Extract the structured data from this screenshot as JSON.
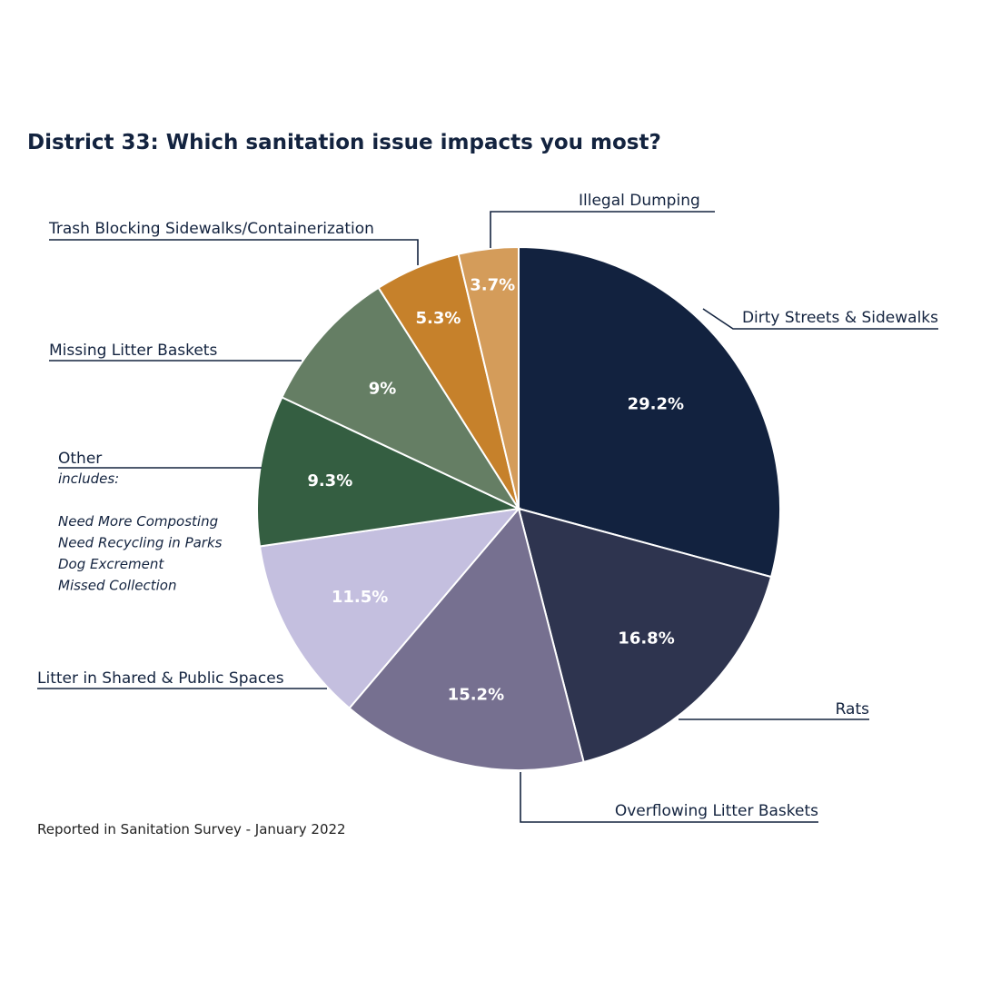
{
  "chart_data": {
    "type": "pie",
    "title": "District 33: Which sanitation issue impacts you most?",
    "source": "Reported in Sanitation Survey - January 2022",
    "start": "12 o'clock, clockwise",
    "slices": [
      {
        "name": "Dirty Streets & Sidewalks",
        "value": 29.2,
        "label": "29.2%",
        "color": "#12223f"
      },
      {
        "name": "Rats",
        "value": 16.8,
        "label": "16.8%",
        "color": "#2e344f"
      },
      {
        "name": "Overflowing Litter Baskets",
        "value": 15.2,
        "label": "15.2%",
        "color": "#767090"
      },
      {
        "name": "Litter in Shared & Public Spaces",
        "value": 11.5,
        "label": "11.5%",
        "color": "#c4bfdf"
      },
      {
        "name": "Other",
        "value": 9.3,
        "label": "9.3%",
        "color": "#345e41"
      },
      {
        "name": "Missing Litter Baskets",
        "value": 9.0,
        "label": "9%",
        "color": "#657e64"
      },
      {
        "name": "Trash Blocking Sidewalks/Containerization",
        "value": 5.3,
        "label": "5.3%",
        "color": "#c6812b"
      },
      {
        "name": "Illegal Dumping",
        "value": 3.7,
        "label": "3.7%",
        "color": "#d49c5a"
      }
    ],
    "other_note": {
      "heading": "includes:",
      "items": [
        "Need More Composting",
        "Need Recycling in Parks",
        "Dog Excrement",
        "Missed Collection"
      ]
    }
  }
}
